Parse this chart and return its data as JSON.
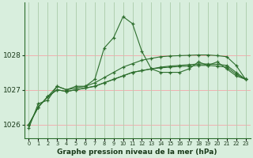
{
  "title": "Graphe pression niveau de la mer (hPa)",
  "background_color": "#d8eedd",
  "grid_color_h": "#f0b0b0",
  "grid_color_v": "#b0d0b0",
  "line_color": "#2d6e2d",
  "hours": [
    0,
    1,
    2,
    3,
    4,
    5,
    6,
    7,
    8,
    9,
    10,
    11,
    12,
    13,
    14,
    15,
    16,
    17,
    18,
    19,
    20,
    21,
    22,
    23
  ],
  "series": [
    [
      1025.9,
      1026.6,
      1026.7,
      1027.1,
      1027.0,
      1027.1,
      1027.1,
      1027.3,
      1028.2,
      1028.5,
      1029.1,
      1028.9,
      1028.1,
      1027.6,
      1027.5,
      1027.5,
      1027.5,
      1027.6,
      1027.8,
      1027.7,
      1027.8,
      1027.6,
      1027.4,
      1027.3
    ],
    [
      1026.0,
      1026.5,
      1026.8,
      1027.1,
      1027.0,
      1027.05,
      1027.1,
      1027.2,
      1027.35,
      1027.5,
      1027.65,
      1027.75,
      1027.85,
      1027.9,
      1027.95,
      1027.97,
      1027.98,
      1027.99,
      1028.0,
      1028.0,
      1027.98,
      1027.95,
      1027.7,
      1027.3
    ],
    [
      1026.0,
      1026.5,
      1026.8,
      1027.0,
      1026.95,
      1027.0,
      1027.05,
      1027.1,
      1027.2,
      1027.3,
      1027.4,
      1027.5,
      1027.55,
      1027.6,
      1027.65,
      1027.68,
      1027.7,
      1027.72,
      1027.74,
      1027.74,
      1027.73,
      1027.7,
      1027.5,
      1027.3
    ],
    [
      1026.0,
      1026.5,
      1026.8,
      1027.0,
      1026.95,
      1027.0,
      1027.05,
      1027.1,
      1027.2,
      1027.3,
      1027.4,
      1027.5,
      1027.55,
      1027.6,
      1027.63,
      1027.65,
      1027.67,
      1027.68,
      1027.7,
      1027.7,
      1027.68,
      1027.65,
      1027.45,
      1027.3
    ]
  ],
  "yticks": [
    1026,
    1027,
    1028
  ],
  "ylim": [
    1025.6,
    1029.5
  ],
  "xlim": [
    -0.5,
    23.5
  ],
  "xtick_labels": [
    "0",
    "1",
    "2",
    "3",
    "4",
    "5",
    "6",
    "7",
    "8",
    "9",
    "10",
    "11",
    "12",
    "13",
    "14",
    "15",
    "16",
    "17",
    "18",
    "19",
    "20",
    "21",
    "22",
    "23"
  ]
}
